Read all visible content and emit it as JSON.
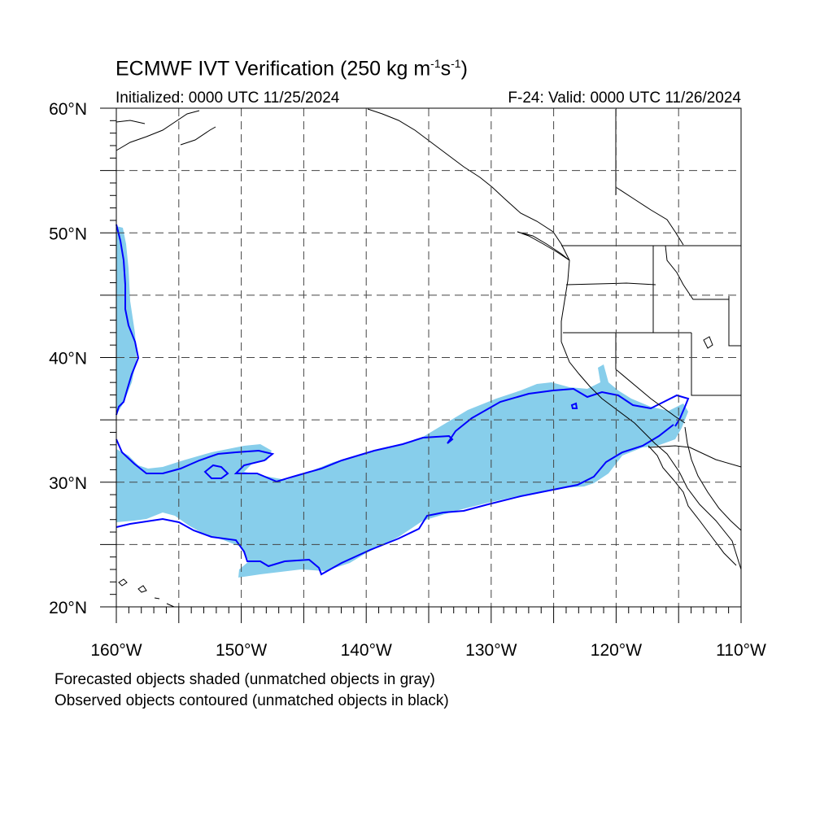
{
  "title": {
    "main": "ECMWF IVT Verification (250 kg m",
    "sup1": "-1",
    "mid": "s",
    "sup2": "-1",
    "end": ")"
  },
  "initialized": "Initialized: 0000 UTC 11/25/2024",
  "valid": "F-24: Valid: 0000 UTC 11/26/2024",
  "notes": {
    "line1": "Forecasted objects shaded (unmatched objects in gray)",
    "line2": "Observed objects contoured (unmatched objects in black)"
  },
  "map": {
    "lon_range": [
      -160,
      -110
    ],
    "lat_range": [
      20,
      60
    ],
    "grid_step_deg": 5,
    "lat_labels": [
      "60°N",
      "50°N",
      "40°N",
      "30°N",
      "20°N"
    ],
    "lon_labels": [
      "160°W",
      "150°W",
      "140°W",
      "130°W",
      "120°W",
      "110°W"
    ],
    "colors": {
      "forecast_fill": "#87ceeb",
      "observed_contour": "#0000ff",
      "coastline": "#000000",
      "grid": "#444444"
    }
  }
}
